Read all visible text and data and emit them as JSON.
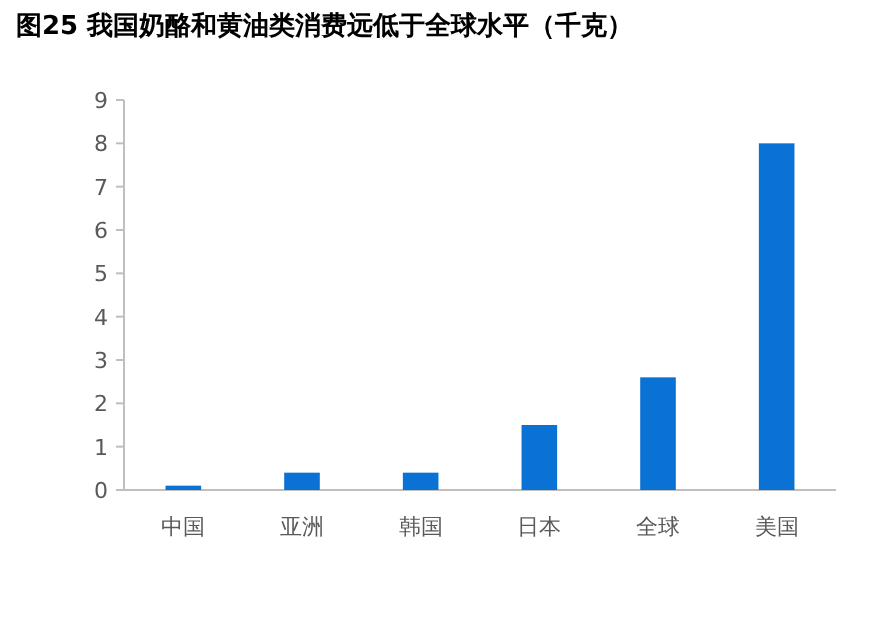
{
  "chart_data": {
    "type": "bar",
    "title": "图25 我国奶酪和黄油类消费远低于全球水平（千克）",
    "categories": [
      "中国",
      "亚洲",
      "韩国",
      "日本",
      "全球",
      "美国"
    ],
    "values": [
      0.1,
      0.4,
      0.4,
      1.5,
      2.6,
      8.0
    ],
    "color": "#0a72d4",
    "ylim": [
      0,
      9
    ],
    "yticks": [
      0,
      1,
      2,
      3,
      4,
      5,
      6,
      7,
      8,
      9
    ],
    "grid": false
  }
}
